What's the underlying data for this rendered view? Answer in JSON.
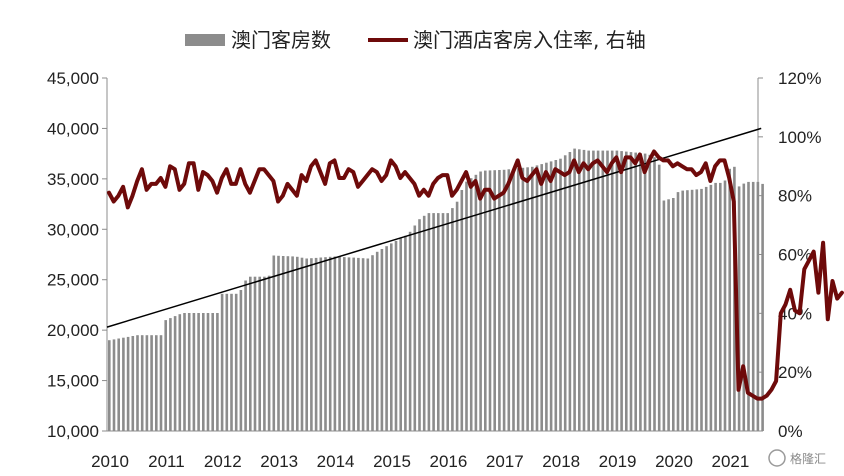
{
  "chart_data": {
    "type": "bar+line",
    "legend": [
      "澳门客房数",
      "澳门酒店客房入住率, 右轴"
    ],
    "left_ticks": [
      "10,000",
      "15,000",
      "20,000",
      "25,000",
      "30,000",
      "35,000",
      "40,000",
      "45,000"
    ],
    "right_ticks": [
      "0%",
      "20%",
      "40%",
      "60%",
      "80%",
      "100%",
      "120%"
    ],
    "x_ticks": [
      "2010",
      "2011",
      "2012",
      "2013",
      "2014",
      "2015",
      "2016",
      "2017",
      "2018",
      "2019",
      "2020",
      "2021"
    ],
    "left_range": [
      10000,
      45000
    ],
    "right_range": [
      0,
      120
    ],
    "series": [
      {
        "name": "澳门客房数",
        "type": "bar",
        "axis": "left",
        "anchors": [
          [
            2010.0,
            19000
          ],
          [
            2010.5,
            19500
          ],
          [
            2010.96,
            19500
          ],
          [
            2011.0,
            21000
          ],
          [
            2011.3,
            21700
          ],
          [
            2011.96,
            21700
          ],
          [
            2012.0,
            23600
          ],
          [
            2012.3,
            23600
          ],
          [
            2012.45,
            25300
          ],
          [
            2012.83,
            25300
          ],
          [
            2012.9,
            27400
          ],
          [
            2013.3,
            27300
          ],
          [
            2013.5,
            27100
          ],
          [
            2014.0,
            27300
          ],
          [
            2014.6,
            27100
          ],
          [
            2014.7,
            27600
          ],
          [
            2015.0,
            28600
          ],
          [
            2015.3,
            29500
          ],
          [
            2015.5,
            31000
          ],
          [
            2015.65,
            31600
          ],
          [
            2016.0,
            31600
          ],
          [
            2016.15,
            32500
          ],
          [
            2016.3,
            34600
          ],
          [
            2016.6,
            35800
          ],
          [
            2017.0,
            35900
          ],
          [
            2017.5,
            36200
          ],
          [
            2018.0,
            37000
          ],
          [
            2018.25,
            38000
          ],
          [
            2018.5,
            37800
          ],
          [
            2019.0,
            37800
          ],
          [
            2019.5,
            37500
          ],
          [
            2019.65,
            37300
          ],
          [
            2019.75,
            36400
          ],
          [
            2019.8,
            32800
          ],
          [
            2020.0,
            33100
          ],
          [
            2020.1,
            33800
          ],
          [
            2020.5,
            34000
          ],
          [
            2020.75,
            34600
          ],
          [
            2020.9,
            34600
          ],
          [
            2021.0,
            36000
          ],
          [
            2021.08,
            36300
          ],
          [
            2021.15,
            34200
          ],
          [
            2021.3,
            34700
          ],
          [
            2021.55,
            34700
          ],
          [
            2021.6,
            34400
          ]
        ],
        "values_description": "monthly hotel room count, 2010-01 to 2021-08, read from the chart"
      },
      {
        "name": "澳门酒店客房入住率, 右轴",
        "type": "line",
        "axis": "right",
        "color": "#6e0a0a",
        "values": [
          81,
          78,
          80,
          83,
          76,
          80,
          85,
          89,
          82,
          84,
          84,
          86,
          83,
          90,
          89,
          82,
          84,
          91,
          91,
          82,
          88,
          87,
          85,
          81,
          86,
          89,
          84,
          84,
          89,
          84,
          81,
          85,
          89,
          89,
          87,
          85,
          78,
          80,
          84,
          82,
          80,
          87,
          85,
          90,
          92,
          88,
          84,
          91,
          92,
          86,
          86,
          89,
          88,
          83,
          85,
          87,
          89,
          88,
          85,
          87,
          92,
          90,
          86,
          88,
          86,
          84,
          80,
          82,
          80,
          84,
          86,
          87,
          87,
          80,
          82,
          85,
          88,
          83,
          85,
          79,
          82,
          82,
          79,
          80,
          81,
          84,
          88,
          92,
          86,
          85,
          87,
          89,
          84,
          88,
          85,
          89,
          88,
          87,
          88,
          92,
          88,
          91,
          89,
          91,
          92,
          90,
          88,
          91,
          93,
          88,
          93,
          93,
          91,
          94,
          88,
          92,
          95,
          93,
          92,
          92,
          90,
          91,
          90,
          89,
          89,
          87,
          88,
          91,
          85,
          90,
          92,
          92,
          86,
          78,
          14,
          22,
          13,
          12,
          11,
          11,
          12,
          14,
          17,
          40,
          43,
          48,
          41,
          40,
          55,
          58,
          61,
          47,
          64,
          38,
          51,
          45,
          47
        ],
        "x_start": 2010.0,
        "step": 0.0833
      },
      {
        "name": "",
        "type": "trend",
        "axis": "left",
        "color": "#000000",
        "points": [
          [
            2010.0,
            20300
          ],
          [
            2021.6,
            40000
          ]
        ]
      }
    ]
  },
  "watermark": {
    "text": "格隆汇"
  }
}
